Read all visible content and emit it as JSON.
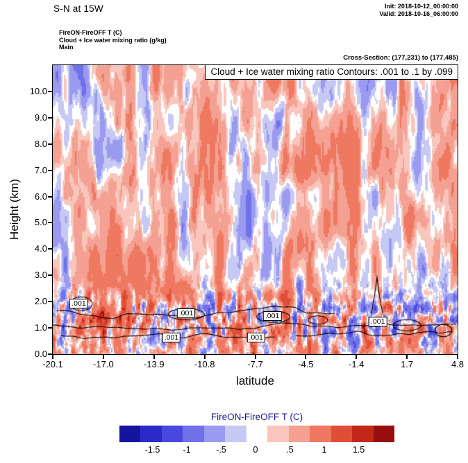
{
  "header": {
    "title": "S-N at 15W",
    "init": "Init: 2018-10-12_00:00:00",
    "valid": "Valid: 2018-10-16_06:00:00",
    "field_t": "FireON-FireOFF T   (C)",
    "field_cloud": "Cloud + Ice water mixing ratio   (g/kg)",
    "field_main": "Main",
    "cross_section": "Cross-Section: (177,231) to (177,485)"
  },
  "chart_data": {
    "type": "heatmap",
    "subtype": "filled-contour-vertical-cross-section",
    "banner": "Cloud + Ice water mixing ratio Contours: .001 to .1 by .099",
    "xlabel": "latitude",
    "ylabel": "Height (km)",
    "x_range": [
      -20.1,
      4.8
    ],
    "x_tick_labels": [
      "-20.1",
      "-17.0",
      "-13.9",
      "-10.8",
      "-7.7",
      "-4.5",
      "-1.4",
      "1.7",
      "4.8"
    ],
    "y_range": [
      0,
      11
    ],
    "y_tick_labels": [
      "0.0",
      "1.0",
      "2.0",
      "3.0",
      "4.0",
      "5.0",
      "6.0",
      "7.0",
      "8.0",
      "9.0",
      "10.0"
    ],
    "grid": false,
    "field_name": "FireON-FireOFF temperature difference (C)",
    "overlay_contours": {
      "quantity": "Cloud + Ice water mixing ratio (g/kg)",
      "levels": [
        0.001,
        0.1
      ],
      "interval": 0.099,
      "label_text": ".001",
      "labels": [
        {
          "lat": -18.5,
          "height": 1.93
        },
        {
          "lat": -11.9,
          "height": 1.55
        },
        {
          "lat": -6.6,
          "height": 1.45
        },
        {
          "lat": -0.1,
          "height": 1.25
        },
        {
          "lat": -12.8,
          "height": 0.62
        },
        {
          "lat": -7.6,
          "height": 0.62
        }
      ]
    },
    "colorbar": {
      "title": "FireON-FireOFF T   (C)",
      "title_color": "#1a1a8f",
      "tick_labels": [
        "-1.5",
        "-1",
        "-.5",
        "0",
        ".5",
        "1",
        "1.5"
      ],
      "levels": [
        -1.75,
        -1.5,
        -1,
        -0.5,
        -0.25,
        -0.08,
        0.08,
        0.25,
        0.5,
        1,
        1.5,
        1.75
      ],
      "colors": [
        "#14149e",
        "#2a2ac8",
        "#4848e0",
        "#7070e8",
        "#9a9af0",
        "#c6c9f4",
        "#ffffff",
        "#f8c6bc",
        "#f4a092",
        "#ee7860",
        "#e04e38",
        "#c22818",
        "#960e0e"
      ]
    }
  }
}
